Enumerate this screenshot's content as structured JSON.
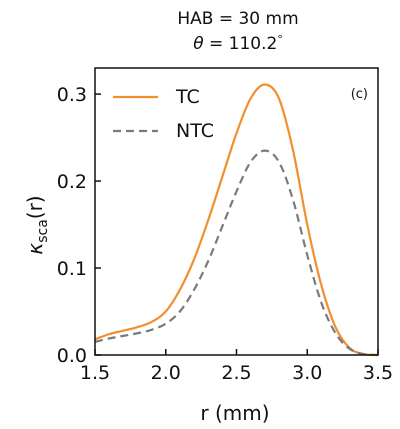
{
  "chart_data": {
    "type": "line",
    "title_line1": "HAB = 30 mm",
    "title_line2_prefix": "θ = ",
    "title_line2_value": "110.2",
    "title_line2_unit": "°",
    "panel_label": "(c)",
    "xlabel": "r (mm)",
    "ylabel_main": "κ",
    "ylabel_sub": "sca",
    "ylabel_suffix": "(r)",
    "xlim": [
      1.5,
      3.5
    ],
    "ylim": [
      0.0,
      0.33
    ],
    "xticks": [
      1.5,
      2.0,
      2.5,
      3.0,
      3.5
    ],
    "xtick_labels": [
      "1.5",
      "2.0",
      "2.5",
      "3.0",
      "3.5"
    ],
    "yticks": [
      0.0,
      0.1,
      0.2,
      0.3
    ],
    "ytick_labels": [
      "0.0",
      "0.1",
      "0.2",
      "0.3"
    ],
    "grid": false,
    "legend_position": "top-left",
    "series": [
      {
        "name": "TC",
        "color": "#F28E2B",
        "style": "solid",
        "x": [
          1.5,
          1.6,
          1.7,
          1.8,
          1.9,
          2.0,
          2.1,
          2.2,
          2.3,
          2.4,
          2.5,
          2.6,
          2.7,
          2.8,
          2.9,
          3.0,
          3.1,
          3.2,
          3.3,
          3.4,
          3.5
        ],
        "y": [
          0.018,
          0.024,
          0.028,
          0.032,
          0.038,
          0.05,
          0.075,
          0.11,
          0.155,
          0.205,
          0.255,
          0.295,
          0.311,
          0.295,
          0.235,
          0.15,
          0.08,
          0.032,
          0.008,
          0.001,
          0.0
        ]
      },
      {
        "name": "NTC",
        "color": "#7A7A7A",
        "style": "dashed",
        "x": [
          1.5,
          1.6,
          1.7,
          1.8,
          1.9,
          2.0,
          2.1,
          2.2,
          2.3,
          2.4,
          2.5,
          2.6,
          2.7,
          2.8,
          2.9,
          3.0,
          3.1,
          3.2,
          3.3,
          3.4,
          3.5
        ],
        "y": [
          0.015,
          0.019,
          0.022,
          0.025,
          0.029,
          0.036,
          0.05,
          0.075,
          0.108,
          0.148,
          0.188,
          0.222,
          0.235,
          0.222,
          0.178,
          0.115,
          0.06,
          0.025,
          0.007,
          0.001,
          0.0
        ]
      }
    ]
  }
}
